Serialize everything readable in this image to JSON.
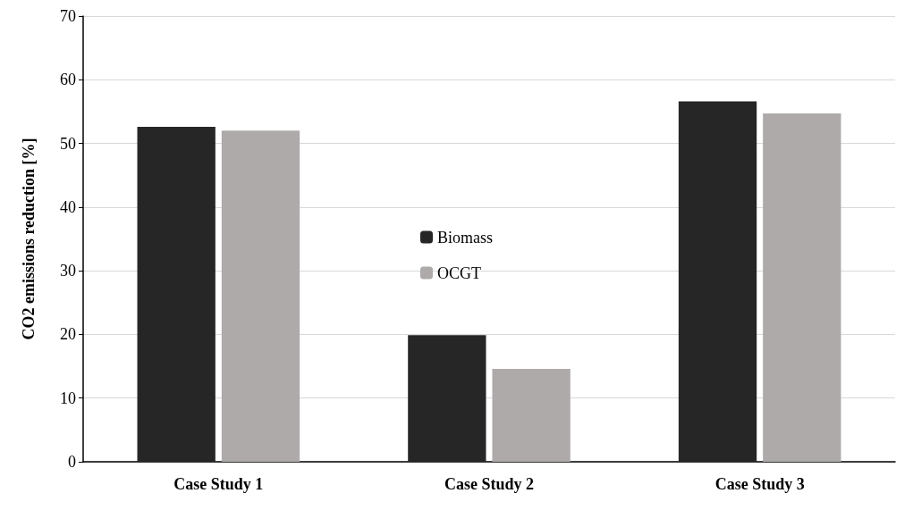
{
  "chart_data": {
    "type": "bar",
    "ylabel": "CO2 emissions reduction [%]",
    "categories": [
      "Case Study 1",
      "Case Study 2",
      "Case Study 3"
    ],
    "series": [
      {
        "name": "Biomass",
        "color": "#262626",
        "values": [
          52.6,
          19.9,
          56.6
        ]
      },
      {
        "name": "OCGT",
        "color": "#aeaaaa",
        "values": [
          52.0,
          14.6,
          54.7
        ]
      }
    ],
    "ylim": [
      0,
      70
    ],
    "yticks": [
      0,
      10,
      20,
      30,
      40,
      50,
      60,
      70
    ],
    "grid": "y",
    "legend": "center"
  }
}
